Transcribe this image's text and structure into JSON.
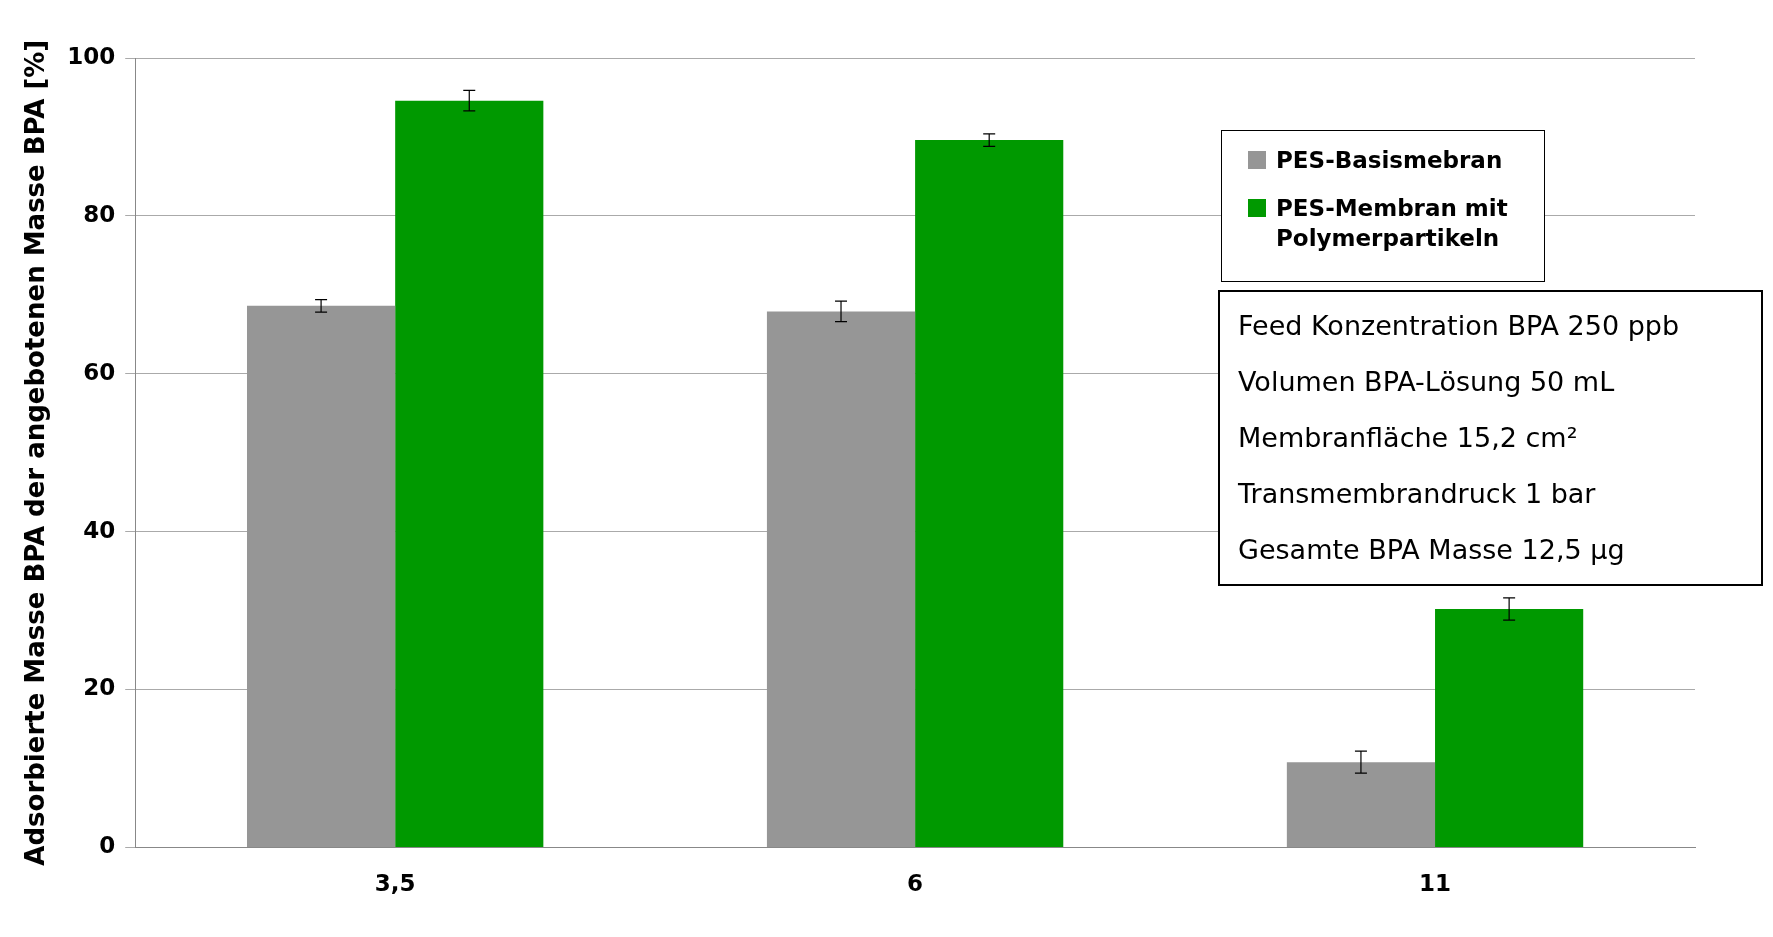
{
  "chart_data": {
    "type": "bar",
    "ylabel": "Adsorbierte Masse BPA der angebotenen Masse BPA [%]",
    "categories": [
      "3,5",
      "6",
      "11"
    ],
    "series": [
      {
        "name": "PES-Basismebran",
        "color": "#969696",
        "values": [
          68.6,
          67.9,
          10.8
        ],
        "errors": [
          0.8,
          1.3,
          1.4
        ]
      },
      {
        "name": "PES-Membran mit Polymerpartikeln",
        "color": "#009900",
        "values": [
          94.6,
          89.6,
          30.2
        ],
        "errors": [
          1.3,
          0.8,
          1.4
        ]
      }
    ],
    "ylim": [
      0,
      100
    ],
    "yticks": [
      0,
      20,
      40,
      60,
      80,
      100
    ],
    "grid": "y",
    "legend": "top right",
    "annotations": [
      "Feed Konzentration BPA 250 ppb",
      "Volumen BPA-Lösung 50 mL",
      "Membranfläche 15,2 cm²",
      "Transmembrandruck 1 bar",
      "Gesamte BPA Masse 12,5 µg"
    ]
  }
}
